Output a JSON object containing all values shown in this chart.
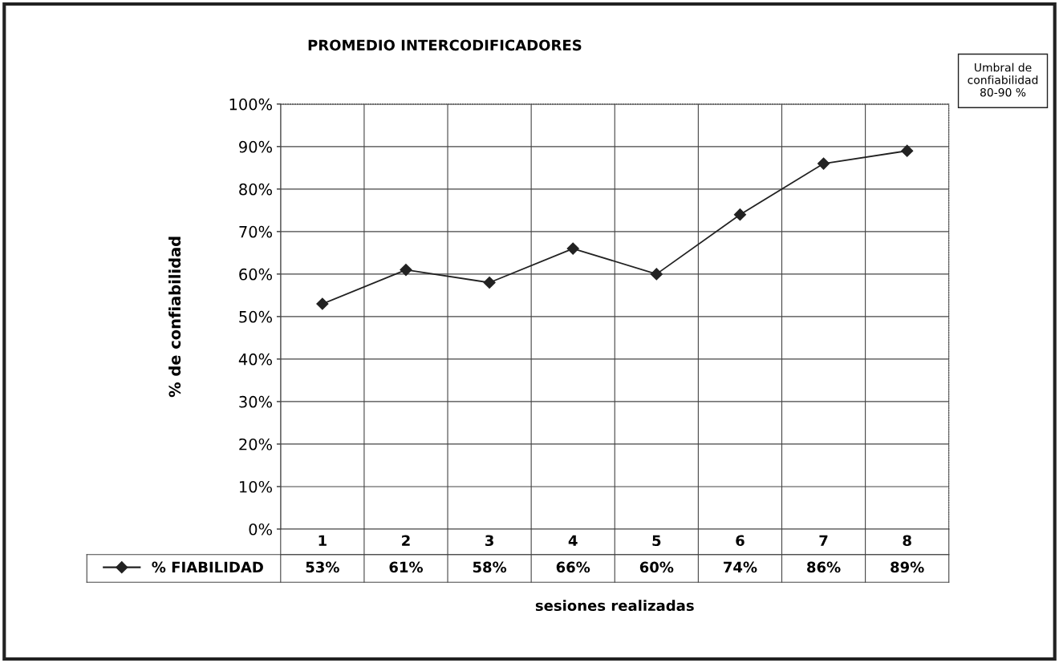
{
  "chart_data": {
    "type": "line",
    "title": "PROMEDIO INTERCODIFICADORES",
    "xlabel": "sesiones realizadas",
    "ylabel": "% de confiabilidad",
    "annotations": [
      "Umbral de\nconfiabilidad\n80-90 %"
    ],
    "categories": [
      "1",
      "2",
      "3",
      "4",
      "5",
      "6",
      "7",
      "8"
    ],
    "series": [
      {
        "name": "% FIABILIDAD",
        "color": "#222222",
        "values": [
          53,
          61,
          58,
          66,
          60,
          74,
          86,
          89
        ],
        "value_labels": [
          "53%",
          "61%",
          "58%",
          "66%",
          "60%",
          "74%",
          "86%",
          "89%"
        ]
      }
    ],
    "ylim": [
      0,
      100
    ],
    "yticks": [
      {
        "value": 0,
        "label": "0%"
      },
      {
        "value": 10,
        "label": "10%"
      },
      {
        "value": 20,
        "label": "20%"
      },
      {
        "value": 30,
        "label": "30%"
      },
      {
        "value": 40,
        "label": "40%"
      },
      {
        "value": 50,
        "label": "50%"
      },
      {
        "value": 60,
        "label": "60%"
      },
      {
        "value": 70,
        "label": "70%"
      },
      {
        "value": 80,
        "label": "80%"
      },
      {
        "value": 90,
        "label": "90%"
      },
      {
        "value": 100,
        "label": "100%"
      }
    ],
    "grid": true,
    "legend": "bottom left",
    "marker": "diamond",
    "line_style": "solid"
  }
}
